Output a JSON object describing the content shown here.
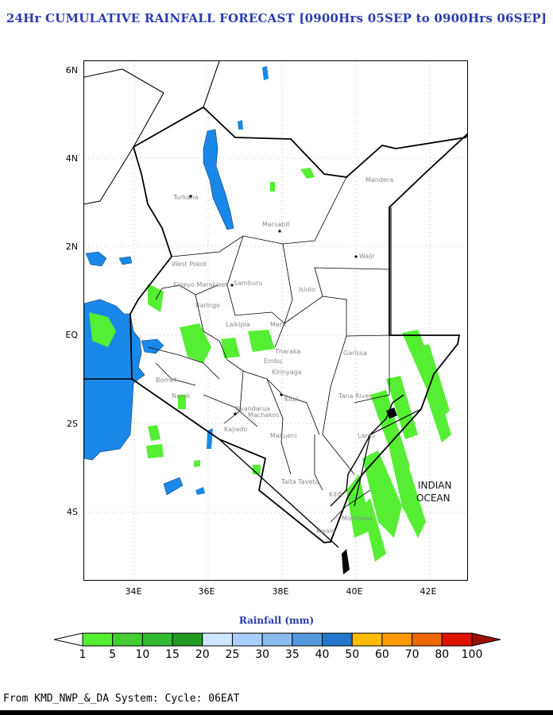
{
  "title": "24Hr CUMULATIVE RAINFALL FORECAST [0900Hrs 05SEP to 0900Hrs 06SEP]",
  "map": {
    "lat_ticks": [
      "6N",
      "4N",
      "2N",
      "EQ",
      "2S",
      "4S"
    ],
    "lon_ticks": [
      "34E",
      "36E",
      "38E",
      "40E",
      "42E"
    ],
    "places": [
      "Mandera",
      "Turkana",
      "Marsabit",
      "Wajir",
      "West Pokot",
      "Samburu",
      "Isiolo",
      "Elgeyo Marakwet",
      "Baringo",
      "Laikipia",
      "Meru",
      "Embu",
      "Tharaka",
      "Kirinyaga",
      "Garissa",
      "Bomet",
      "Narok",
      "Kitui",
      "Tana River",
      "Nyandarua",
      "Machakos",
      "Kajiado",
      "Makueni",
      "Lamu",
      "Taita Taveta",
      "Kilifi",
      "Mombasa",
      "Kwale"
    ],
    "ocean_label_1": "INDIAN",
    "ocean_label_2": "OCEAN"
  },
  "colorbar": {
    "title": "Rainfall (mm)",
    "labels": [
      "1",
      "5",
      "10",
      "15",
      "20",
      "25",
      "30",
      "35",
      "40",
      "50",
      "60",
      "70",
      "80",
      "100"
    ],
    "colors": [
      "#ffffff",
      "#55ee33",
      "#44cc33",
      "#33bb33",
      "#229922",
      "#cfe6ff",
      "#aacfff",
      "#88bbee",
      "#5599dd",
      "#2277cc",
      "#ffbb00",
      "#ff9900",
      "#ee6600",
      "#dd1100",
      "#991100"
    ]
  },
  "footer": "From KMD_NWP_&_DA System: Cycle: 06EAT"
}
